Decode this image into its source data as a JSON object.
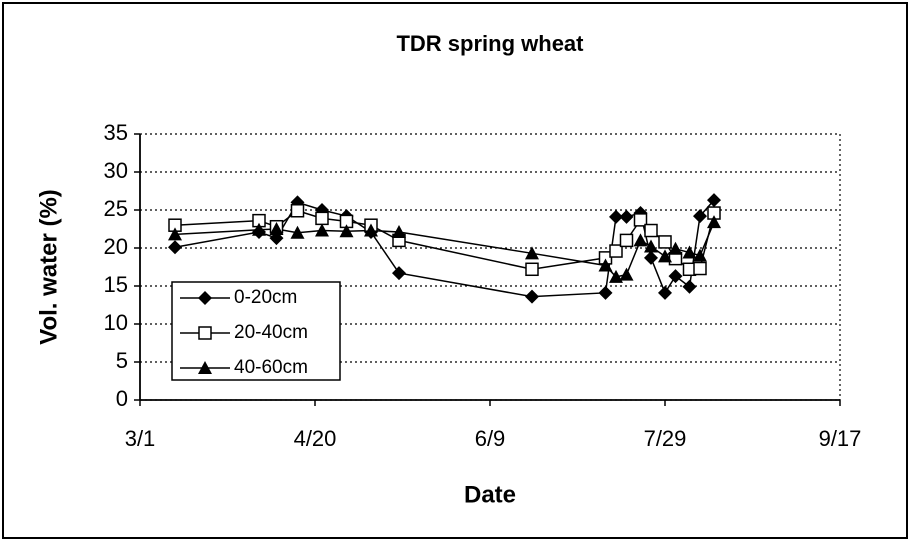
{
  "chart_data": {
    "type": "line",
    "title": "TDR spring wheat",
    "x_label": "Date",
    "y_label": "Vol. water (%)",
    "x": [
      "3/11",
      "4/4",
      "4/9",
      "4/15",
      "4/22",
      "4/29",
      "5/6",
      "5/14",
      "6/21",
      "7/12",
      "7/15",
      "7/18",
      "7/22",
      "7/25",
      "7/29",
      "8/1",
      "8/5",
      "8/8",
      "8/12"
    ],
    "series": [
      {
        "name": "0-20cm",
        "color": "#000000",
        "marker": "diamond",
        "values": [
          20.1,
          22.1,
          21.3,
          26,
          25,
          24.2,
          22.1,
          16.7,
          13.6,
          14.1,
          24.1,
          24.1,
          24.6,
          18.7,
          14.1,
          16.3,
          14.9,
          24.2,
          26.3
        ]
      },
      {
        "name": "20-40cm",
        "color": "#000000",
        "marker": "square",
        "values": [
          23,
          23.6,
          22.8,
          24.9,
          23.9,
          23.5,
          23,
          21,
          17.2,
          18.7,
          19.6,
          21,
          23.7,
          22.3,
          20.8,
          18.6,
          17.2,
          17.3,
          24.6
        ]
      },
      {
        "name": "40-60cm",
        "color": "#000000",
        "marker": "triangle",
        "values": [
          21.8,
          22.4,
          22.5,
          22,
          22.3,
          22.2,
          22.3,
          22.1,
          19.3,
          17.7,
          16.2,
          16.5,
          21,
          20.2,
          18.9,
          19.9,
          19.4,
          19,
          23.4
        ]
      }
    ],
    "xlim": [
      "3/1",
      "9/17"
    ],
    "xticks": [
      "3/1",
      "4/20",
      "6/9",
      "7/29",
      "9/17"
    ],
    "ylim": [
      0,
      35
    ],
    "yticks": [
      0,
      5,
      10,
      15,
      20,
      25,
      30,
      35
    ],
    "grid": true,
    "legend": "lower left"
  }
}
